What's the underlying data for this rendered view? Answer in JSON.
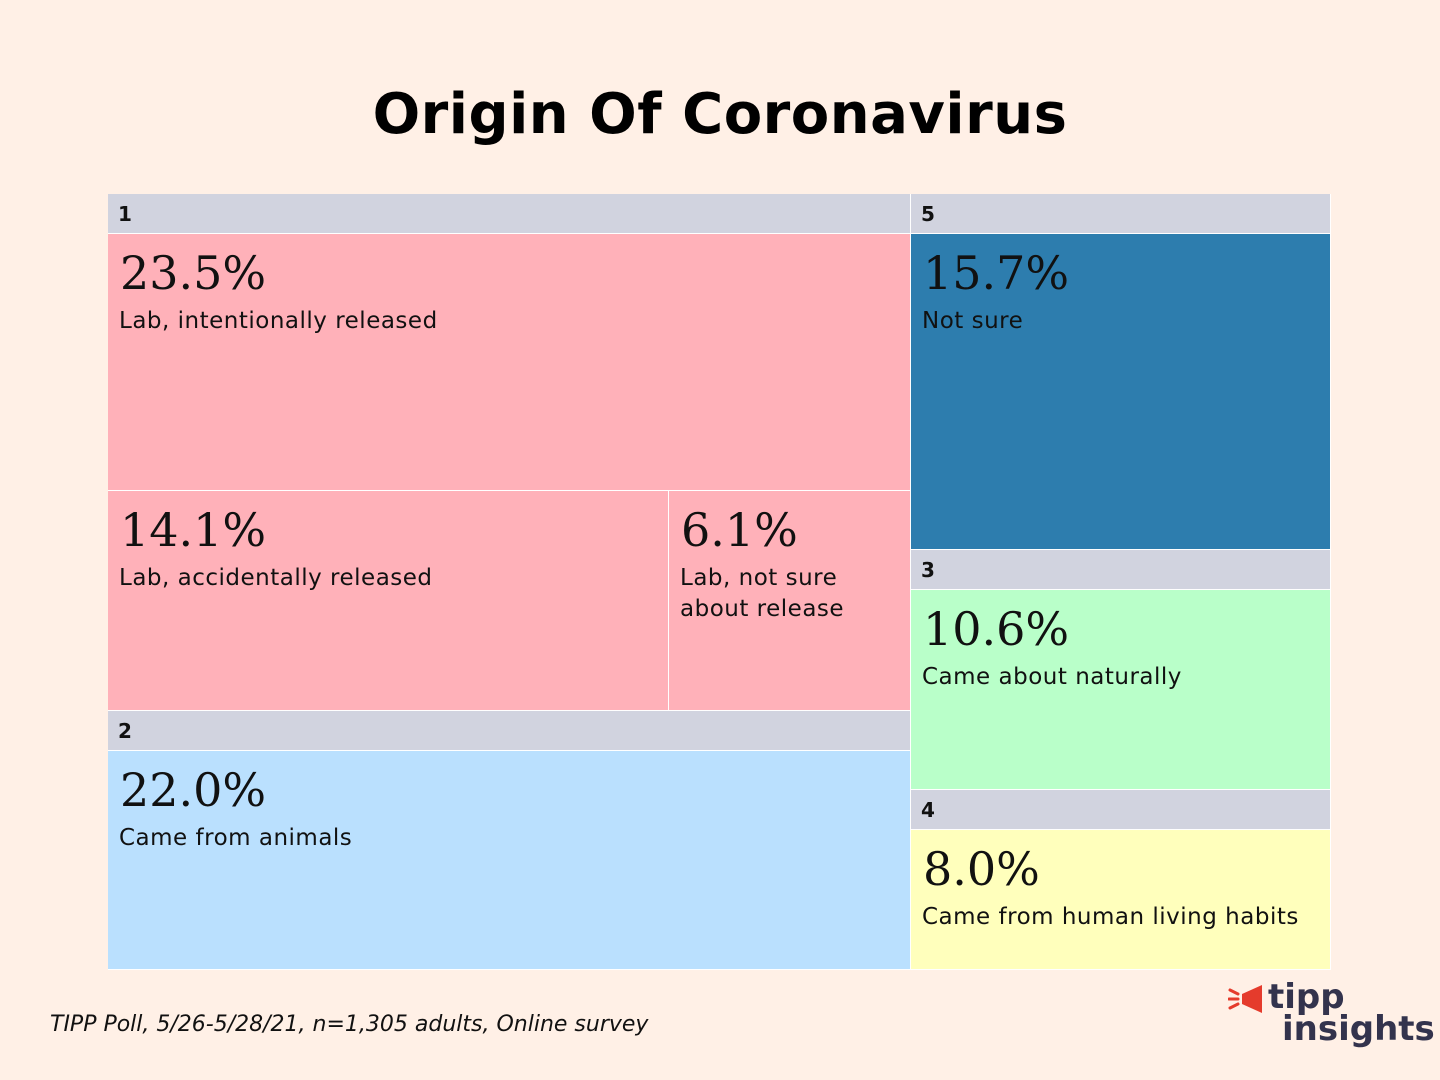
{
  "title": "Origin Of Coronavirus",
  "source_note": "TIPP Poll, 5/26-5/28/21, n=1,305 adults, Online survey",
  "logo": {
    "line1": "tipp",
    "line2": "insights"
  },
  "colors": {
    "background": "#fff0e6",
    "header": "#d1d3df",
    "lab": "#ffb1b9",
    "animals": "#bae0fe",
    "natural": "#b9ffc9",
    "human_habits": "#ffffbc",
    "not_sure": "#2d7dae",
    "logo_accent": "#e53b2c"
  },
  "chart_data": {
    "type": "treemap",
    "title": "Origin Of Coronavirus",
    "groups": [
      {
        "id": "1",
        "label": "1",
        "items": [
          {
            "value": 23.5,
            "value_label": "23.5%",
            "label": "Lab, intentionally released",
            "color": "#ffb1b9"
          },
          {
            "value": 14.1,
            "value_label": "14.1%",
            "label": "Lab, accidentally released",
            "color": "#ffb1b9"
          },
          {
            "value": 6.1,
            "value_label": "6.1%",
            "label": "Lab, not sure about release",
            "color": "#ffb1b9"
          }
        ]
      },
      {
        "id": "2",
        "label": "2",
        "items": [
          {
            "value": 22.0,
            "value_label": "22.0%",
            "label": "Came from animals",
            "color": "#bae0fe"
          }
        ]
      },
      {
        "id": "5",
        "label": "5",
        "items": [
          {
            "value": 15.7,
            "value_label": "15.7%",
            "label": "Not sure",
            "color": "#2d7dae"
          }
        ]
      },
      {
        "id": "3",
        "label": "3",
        "items": [
          {
            "value": 10.6,
            "value_label": "10.6%",
            "label": "Came about naturally",
            "color": "#b9ffc9"
          }
        ]
      },
      {
        "id": "4",
        "label": "4",
        "items": [
          {
            "value": 8.0,
            "value_label": "8.0%",
            "label": "Came from human living habits",
            "color": "#ffffbc"
          }
        ]
      }
    ]
  }
}
